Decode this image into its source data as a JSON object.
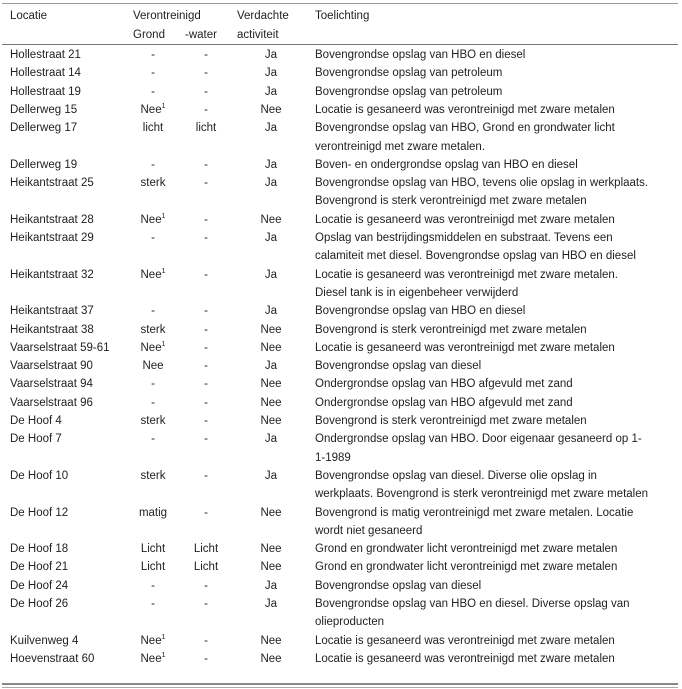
{
  "table": {
    "header": {
      "locatie": "Locatie",
      "verontreinigd": "Verontreinigd",
      "grond": "Grond",
      "water": "-water",
      "verdachte": "Verdachte",
      "activiteit": "activiteit",
      "toelichting": "Toelichting"
    },
    "rows": [
      {
        "locatie": "Hollestraat 21",
        "grond": "-",
        "water": "-",
        "activiteit": "Ja",
        "toelichting": [
          "Bovengrondse opslag van HBO en diesel"
        ]
      },
      {
        "locatie": "Hollestraat 14",
        "grond": "-",
        "water": "-",
        "activiteit": "Ja",
        "toelichting": [
          "Bovengrondse opslag van petroleum"
        ]
      },
      {
        "locatie": "Hollestraat 19",
        "grond": "-",
        "water": "-",
        "activiteit": "Ja",
        "toelichting": [
          "Bovengrondse opslag van petroleum"
        ]
      },
      {
        "locatie": "Dellerweg 15",
        "grond": "Nee",
        "grond_note": "1",
        "water": "-",
        "activiteit": "Nee",
        "toelichting": [
          "Locatie is gesaneerd was verontreinigd met zware metalen"
        ]
      },
      {
        "locatie": "Dellerweg 17",
        "grond": "licht",
        "water": "licht",
        "activiteit": "Ja",
        "toelichting": [
          "Bovengrondse opslag van HBO, Grond en grondwater licht",
          "verontreinigd met zware metalen."
        ]
      },
      {
        "locatie": "Dellerweg 19",
        "grond": "-",
        "water": "-",
        "activiteit": "Ja",
        "toelichting": [
          "Boven- en ondergrondse opslag van HBO en diesel"
        ]
      },
      {
        "locatie": "Heikantstraat 25",
        "grond": "sterk",
        "water": "-",
        "activiteit": "Ja",
        "toelichting": [
          "Bovengrondse opslag van HBO, tevens olie opslag in werkplaats.",
          "Bovengrond is sterk verontreinigd met zware metalen"
        ]
      },
      {
        "locatie": "Heikantstraat 28",
        "grond": "Nee",
        "grond_note": "1",
        "water": "-",
        "activiteit": "Nee",
        "toelichting": [
          "Locatie is gesaneerd was verontreinigd met zware metalen"
        ]
      },
      {
        "locatie": "Heikantstraat 29",
        "grond": "-",
        "water": "-",
        "activiteit": "Ja",
        "toelichting": [
          "Opslag van bestrijdingsmiddelen en substraat. Tevens een",
          "calamiteit met diesel. Bovengrondse opslag van HBO en diesel"
        ]
      },
      {
        "locatie": "Heikantstraat 32",
        "grond": "Nee",
        "grond_note": "1",
        "water": "-",
        "activiteit": "Ja",
        "toelichting": [
          "Locatie is gesaneerd was verontreinigd met zware metalen.",
          "Diesel tank is in eigenbeheer verwijderd"
        ]
      },
      {
        "locatie": "Heikantstraat 37",
        "grond": "-",
        "water": "-",
        "activiteit": "Ja",
        "toelichting": [
          "Bovengrondse opslag van HBO en diesel"
        ]
      },
      {
        "locatie": "Heikantstraat 38",
        "grond": "sterk",
        "water": "-",
        "activiteit": "Nee",
        "toelichting": [
          "Bovengrond is sterk verontreinigd met zware metalen"
        ]
      },
      {
        "locatie": "Vaarselstraat 59-61",
        "grond": "Nee",
        "grond_note": "1",
        "water": "-",
        "activiteit": "Nee",
        "toelichting": [
          "Locatie is gesaneerd was verontreinigd met zware metalen"
        ]
      },
      {
        "locatie": "Vaarselstraat 90",
        "grond": "Nee",
        "water": "-",
        "activiteit": "Ja",
        "toelichting": [
          "Bovengrondse opslag van diesel"
        ]
      },
      {
        "locatie": "Vaarselstraat 94",
        "grond": "-",
        "water": "-",
        "activiteit": "Nee",
        "toelichting": [
          "Ondergrondse opslag van HBO afgevuld met zand"
        ]
      },
      {
        "locatie": "Vaarselstraat 96",
        "grond": "-",
        "water": "-",
        "activiteit": "Nee",
        "toelichting": [
          "Ondergrondse opslag van HBO afgevuld met zand"
        ]
      },
      {
        "locatie": "De Hoof 4",
        "grond": "sterk",
        "water": "-",
        "activiteit": "Nee",
        "toelichting": [
          "Bovengrond is sterk verontreinigd met zware metalen"
        ]
      },
      {
        "locatie": "De Hoof 7",
        "grond": "-",
        "water": "-",
        "activiteit": "Ja",
        "toelichting": [
          "Ondergrondse opslag van HBO. Door eigenaar gesaneerd op 1-",
          "1-1989"
        ]
      },
      {
        "locatie": "De Hoof 10",
        "grond": "sterk",
        "water": "-",
        "activiteit": "Ja",
        "toelichting": [
          "Bovengrondse opslag van diesel. Diverse olie opslag in",
          "werkplaats. Bovengrond is sterk verontreinigd met zware metalen"
        ]
      },
      {
        "locatie": "De Hoof 12",
        "grond": "matig",
        "water": "-",
        "activiteit": "Nee",
        "toelichting": [
          "Bovengrond is matig verontreinigd met zware metalen. Locatie",
          "wordt niet gesaneerd"
        ]
      },
      {
        "locatie": "De Hoof 18",
        "grond": "Licht",
        "water": "Licht",
        "activiteit": "Nee",
        "toelichting": [
          "Grond en grondwater licht verontreinigd met zware metalen"
        ]
      },
      {
        "locatie": "De Hoof 21",
        "grond": "Licht",
        "water": "Licht",
        "activiteit": "Nee",
        "toelichting": [
          "Grond en grondwater licht verontreinigd met zware metalen"
        ]
      },
      {
        "locatie": "De Hoof 24",
        "grond": "-",
        "water": "-",
        "activiteit": "Ja",
        "toelichting": [
          "Bovengrondse opslag van diesel"
        ]
      },
      {
        "locatie": "De Hoof 26",
        "grond": "-",
        "water": "-",
        "activiteit": "Ja",
        "toelichting": [
          "Bovengrondse opslag van HBO en diesel. Diverse opslag van",
          "olieproducten"
        ]
      },
      {
        "locatie": "Kuilvenweg 4",
        "grond": "Nee",
        "grond_note": "1",
        "water": "-",
        "activiteit": "Nee",
        "toelichting": [
          "Locatie is gesaneerd was verontreinigd met zware metalen"
        ]
      },
      {
        "locatie": "Hoevenstraat 60",
        "grond": "Nee",
        "grond_note": "1",
        "water": "-",
        "activiteit": "Nee",
        "toelichting": [
          "Locatie is gesaneerd was verontreinigd met zware metalen"
        ]
      }
    ]
  }
}
